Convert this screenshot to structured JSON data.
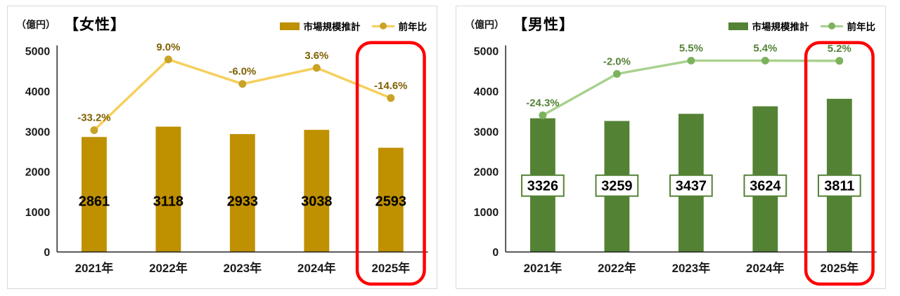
{
  "page": {
    "background": "#ffffff"
  },
  "chart_data": [
    {
      "id": "female",
      "type": "bar",
      "title": "【女性】",
      "unit_label": "（億円）",
      "legend": {
        "bar_label": "市場規模推計",
        "line_label": "前年比",
        "position": "top-right"
      },
      "colors": {
        "bar": "#BF9000",
        "line": "#F6CF5B",
        "marker": "#C9A227",
        "pct_label": "#7F6000",
        "highlight": "#FF0000"
      },
      "value_label_style": "plain",
      "categories": [
        "2021年",
        "2022年",
        "2023年",
        "2024年",
        "2025年"
      ],
      "series": [
        {
          "name": "市場規模推計",
          "type": "bar",
          "values": [
            2861,
            3118,
            2933,
            3038,
            2593
          ]
        },
        {
          "name": "前年比",
          "type": "line",
          "axis": "secondary",
          "labels": [
            "-33.2%",
            "9.0%",
            "-6.0%",
            "3.6%",
            "-14.6%"
          ],
          "pct_values": [
            -33.2,
            9.0,
            -6.0,
            3.6,
            -14.6
          ],
          "plot_values": [
            3030,
            4790,
            4180,
            4580,
            3830
          ]
        }
      ],
      "ylabel": "（億円）",
      "ylim": [
        0,
        5000
      ],
      "yticks": [
        0,
        1000,
        2000,
        3000,
        4000,
        5000
      ],
      "grid": false,
      "highlighted_category": "2025年"
    },
    {
      "id": "male",
      "type": "bar",
      "title": "【男性】",
      "unit_label": "（億円）",
      "legend": {
        "bar_label": "市場規模推計",
        "line_label": "前年比",
        "position": "top-right"
      },
      "colors": {
        "bar": "#548235",
        "line": "#A9D18E",
        "marker": "#7CB25C",
        "pct_label": "#538135",
        "value_box_border": "#548235",
        "highlight": "#FF0000"
      },
      "value_label_style": "boxed",
      "categories": [
        "2021年",
        "2022年",
        "2023年",
        "2024年",
        "2025年"
      ],
      "series": [
        {
          "name": "市場規模推計",
          "type": "bar",
          "values": [
            3326,
            3259,
            3437,
            3624,
            3811
          ]
        },
        {
          "name": "前年比",
          "type": "line",
          "axis": "secondary",
          "labels": [
            "-24.3%",
            "-2.0%",
            "5.5%",
            "5.4%",
            "5.2%"
          ],
          "pct_values": [
            -24.3,
            -2.0,
            5.5,
            5.4,
            5.2
          ],
          "plot_values": [
            3400,
            4430,
            4760,
            4760,
            4755
          ]
        }
      ],
      "ylabel": "（億円）",
      "ylim": [
        0,
        5000
      ],
      "yticks": [
        0,
        1000,
        2000,
        3000,
        4000,
        5000
      ],
      "grid": false,
      "highlighted_category": "2025年"
    }
  ]
}
